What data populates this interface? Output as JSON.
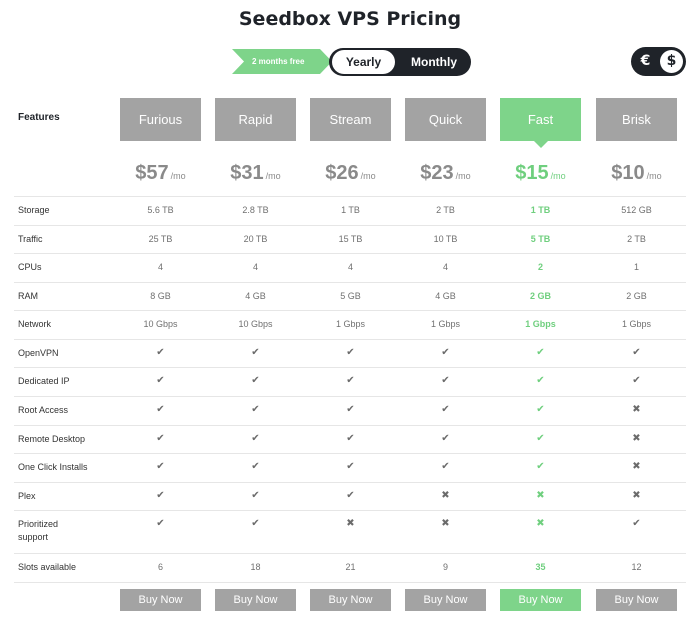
{
  "title": "Seedbox VPS Pricing",
  "promo": "2 months free",
  "billing": {
    "yearly": "Yearly",
    "monthly": "Monthly",
    "selected": "Yearly"
  },
  "currency": {
    "eur": "€",
    "usd": "$",
    "selected": "usd"
  },
  "features_label": "Features",
  "colors": {
    "accent": "#7ed48a",
    "muted": "#a3a3a3",
    "dark": "#1f2329"
  },
  "plans": [
    {
      "name": "Furious",
      "price": "$57",
      "per": "/mo",
      "buy": "Buy Now",
      "highlight": false
    },
    {
      "name": "Rapid",
      "price": "$31",
      "per": "/mo",
      "buy": "Buy Now",
      "highlight": false
    },
    {
      "name": "Stream",
      "price": "$26",
      "per": "/mo",
      "buy": "Buy Now",
      "highlight": false
    },
    {
      "name": "Quick",
      "price": "$23",
      "per": "/mo",
      "buy": "Buy Now",
      "highlight": false
    },
    {
      "name": "Fast",
      "price": "$15",
      "per": "/mo",
      "buy": "Buy Now",
      "highlight": true
    },
    {
      "name": "Brisk",
      "price": "$10",
      "per": "/mo",
      "buy": "Buy Now",
      "highlight": false
    }
  ],
  "rows": [
    {
      "label": "Storage",
      "type": "text",
      "values": [
        "5.6 TB",
        "2.8 TB",
        "1 TB",
        "2 TB",
        "1 TB",
        "512 GB"
      ]
    },
    {
      "label": "Traffic",
      "type": "text",
      "values": [
        "25 TB",
        "20 TB",
        "15 TB",
        "10 TB",
        "5 TB",
        "2 TB"
      ]
    },
    {
      "label": "CPUs",
      "type": "text",
      "values": [
        "4",
        "4",
        "4",
        "4",
        "2",
        "1"
      ]
    },
    {
      "label": "RAM",
      "type": "text",
      "values": [
        "8 GB",
        "4 GB",
        "5 GB",
        "4 GB",
        "2 GB",
        "2 GB"
      ]
    },
    {
      "label": "Network",
      "type": "text",
      "values": [
        "10 Gbps",
        "10 Gbps",
        "1 Gbps",
        "1 Gbps",
        "1 Gbps",
        "1 Gbps"
      ]
    },
    {
      "label": "OpenVPN",
      "type": "icon",
      "values": [
        "check",
        "check",
        "check",
        "check",
        "check",
        "check"
      ]
    },
    {
      "label": "Dedicated IP",
      "type": "icon",
      "values": [
        "check",
        "check",
        "check",
        "check",
        "check",
        "check"
      ]
    },
    {
      "label": "Root Access",
      "type": "icon",
      "values": [
        "check",
        "check",
        "check",
        "check",
        "check",
        "cross"
      ]
    },
    {
      "label": "Remote Desktop",
      "type": "icon",
      "values": [
        "check",
        "check",
        "check",
        "check",
        "check",
        "cross"
      ]
    },
    {
      "label": "One Click Installs",
      "type": "icon",
      "values": [
        "check",
        "check",
        "check",
        "check",
        "check",
        "cross"
      ]
    },
    {
      "label": "Plex",
      "type": "icon",
      "values": [
        "check",
        "check",
        "check",
        "cross",
        "cross",
        "cross"
      ]
    },
    {
      "label": "Prioritized support",
      "type": "icon",
      "values": [
        "check",
        "check",
        "cross",
        "cross",
        "cross",
        "check"
      ]
    },
    {
      "label": "Slots available",
      "type": "text",
      "values": [
        "6",
        "18",
        "21",
        "9",
        "35",
        "12"
      ]
    }
  ]
}
